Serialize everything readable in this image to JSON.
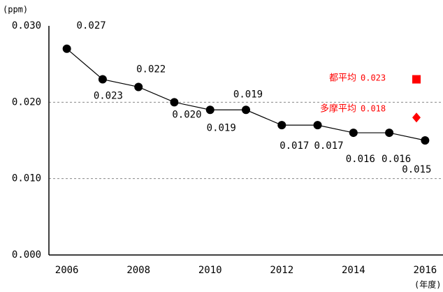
{
  "chart_data": {
    "type": "line",
    "y_unit_label": "(ppm)",
    "x_unit_label": "(年度)",
    "x": [
      2006,
      2007,
      2008,
      2009,
      2010,
      2011,
      2012,
      2013,
      2014,
      2015,
      2016
    ],
    "series": [
      {
        "color": "#000000",
        "values": [
          0.027,
          0.023,
          0.022,
          0.02,
          0.019,
          0.019,
          0.017,
          0.017,
          0.016,
          0.016,
          0.015
        ],
        "value_labels": [
          "0.027",
          "0.023",
          "0.022",
          "0.020",
          "0.019",
          "0.019",
          "0.017",
          "0.017",
          "0.016",
          "0.016",
          "0.015"
        ]
      }
    ],
    "xlim": [
      2005.5,
      2016.5
    ],
    "xticks": [
      2006,
      2008,
      2010,
      2012,
      2014,
      2016
    ],
    "ylim": [
      0,
      0.03
    ],
    "yticks": [
      {
        "value": 0,
        "label": "0.000"
      },
      {
        "value": 0.01,
        "label": "0.010"
      },
      {
        "value": 0.02,
        "label": "0.020"
      },
      {
        "value": 0.03,
        "label": "0.030"
      }
    ],
    "grid": true,
    "annotations": [
      {
        "name": "都平均",
        "value": 0.023,
        "value_label": "0.023",
        "color": "#ff0000",
        "marker": "square"
      },
      {
        "name": "多摩平均",
        "value": 0.018,
        "value_label": "0.018",
        "color": "#ff0000",
        "marker": "diamond"
      }
    ]
  }
}
